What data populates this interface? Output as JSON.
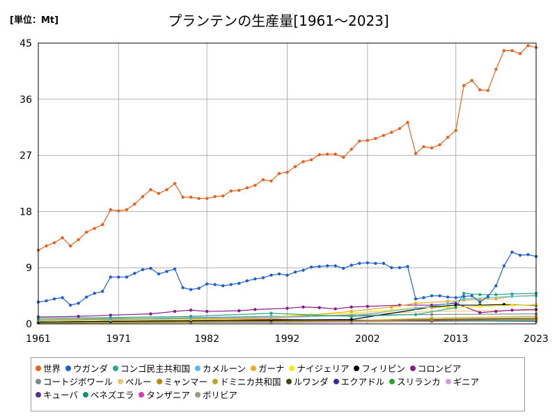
{
  "unit_label": "[単位：Mt]",
  "chart_data": {
    "type": "line",
    "title": "プランテンの生産量[1961～2023]",
    "xlabel": "",
    "ylabel": "",
    "xlim": [
      1961,
      2023
    ],
    "ylim": [
      0,
      45
    ],
    "yticks": [
      0,
      9,
      18,
      27,
      36,
      45
    ],
    "xticks": [
      1961,
      1971,
      1982,
      1992,
      2002,
      2013,
      2023
    ],
    "grid": true,
    "legend_position": "bottom",
    "series": [
      {
        "name": "世界",
        "color": "#e8601c",
        "points": [
          [
            1961,
            11.8
          ],
          [
            1962,
            12.5
          ],
          [
            1963,
            13.0
          ],
          [
            1964,
            13.8
          ],
          [
            1965,
            12.5
          ],
          [
            1966,
            13.5
          ],
          [
            1967,
            14.7
          ],
          [
            1968,
            15.3
          ],
          [
            1969,
            15.9
          ],
          [
            1970,
            18.3
          ],
          [
            1971,
            18.1
          ],
          [
            1972,
            18.3
          ],
          [
            1973,
            19.2
          ],
          [
            1974,
            20.4
          ],
          [
            1975,
            21.5
          ],
          [
            1976,
            20.9
          ],
          [
            1977,
            21.5
          ],
          [
            1978,
            22.5
          ],
          [
            1979,
            20.3
          ],
          [
            1980,
            20.3
          ],
          [
            1981,
            20.1
          ],
          [
            1982,
            20.1
          ],
          [
            1983,
            20.4
          ],
          [
            1984,
            20.5
          ],
          [
            1985,
            21.3
          ],
          [
            1986,
            21.4
          ],
          [
            1987,
            21.8
          ],
          [
            1988,
            22.2
          ],
          [
            1989,
            23.1
          ],
          [
            1990,
            22.9
          ],
          [
            1991,
            24.1
          ],
          [
            1992,
            24.3
          ],
          [
            1993,
            25.2
          ],
          [
            1994,
            26.0
          ],
          [
            1995,
            26.3
          ],
          [
            1996,
            27.1
          ],
          [
            1997,
            27.2
          ],
          [
            1998,
            27.2
          ],
          [
            1999,
            26.7
          ],
          [
            2000,
            28.0
          ],
          [
            2001,
            29.3
          ],
          [
            2002,
            29.4
          ],
          [
            2003,
            29.7
          ],
          [
            2004,
            30.2
          ],
          [
            2005,
            30.7
          ],
          [
            2006,
            31.3
          ],
          [
            2007,
            32.3
          ],
          [
            2008,
            27.3
          ],
          [
            2009,
            28.4
          ],
          [
            2010,
            28.2
          ],
          [
            2011,
            28.7
          ],
          [
            2012,
            29.9
          ],
          [
            2013,
            31.0
          ],
          [
            2014,
            38.2
          ],
          [
            2015,
            39.0
          ],
          [
            2016,
            37.5
          ],
          [
            2017,
            37.4
          ],
          [
            2018,
            40.8
          ],
          [
            2019,
            43.8
          ],
          [
            2020,
            43.8
          ],
          [
            2021,
            43.3
          ],
          [
            2022,
            44.6
          ],
          [
            2023,
            44.3
          ]
        ]
      },
      {
        "name": "ウガンダ",
        "color": "#1f5fd1",
        "points": [
          [
            1961,
            3.5
          ],
          [
            1962,
            3.7
          ],
          [
            1963,
            4.0
          ],
          [
            1964,
            4.2
          ],
          [
            1965,
            3.0
          ],
          [
            1966,
            3.3
          ],
          [
            1967,
            4.3
          ],
          [
            1968,
            4.9
          ],
          [
            1969,
            5.2
          ],
          [
            1970,
            7.5
          ],
          [
            1971,
            7.5
          ],
          [
            1972,
            7.5
          ],
          [
            1973,
            8.1
          ],
          [
            1974,
            8.7
          ],
          [
            1975,
            8.9
          ],
          [
            1976,
            8.0
          ],
          [
            1977,
            8.4
          ],
          [
            1978,
            8.8
          ],
          [
            1979,
            5.8
          ],
          [
            1980,
            5.5
          ],
          [
            1981,
            5.7
          ],
          [
            1982,
            6.4
          ],
          [
            1983,
            6.3
          ],
          [
            1984,
            6.1
          ],
          [
            1985,
            6.3
          ],
          [
            1986,
            6.5
          ],
          [
            1987,
            6.9
          ],
          [
            1988,
            7.2
          ],
          [
            1989,
            7.4
          ],
          [
            1990,
            7.8
          ],
          [
            1991,
            8.0
          ],
          [
            1992,
            7.8
          ],
          [
            1993,
            8.3
          ],
          [
            1994,
            8.6
          ],
          [
            1995,
            9.1
          ],
          [
            1996,
            9.2
          ],
          [
            1997,
            9.3
          ],
          [
            1998,
            9.3
          ],
          [
            1999,
            8.9
          ],
          [
            2000,
            9.4
          ],
          [
            2001,
            9.7
          ],
          [
            2002,
            9.8
          ],
          [
            2003,
            9.7
          ],
          [
            2004,
            9.7
          ],
          [
            2005,
            9.0
          ],
          [
            2006,
            9.0
          ],
          [
            2007,
            9.2
          ],
          [
            2008,
            4.0
          ],
          [
            2009,
            4.2
          ],
          [
            2010,
            4.5
          ],
          [
            2011,
            4.5
          ],
          [
            2012,
            4.3
          ],
          [
            2013,
            4.2
          ],
          [
            2014,
            4.4
          ],
          [
            2015,
            4.5
          ],
          [
            2016,
            3.5
          ],
          [
            2017,
            4.4
          ],
          [
            2018,
            6.1
          ],
          [
            2019,
            9.3
          ],
          [
            2020,
            11.5
          ],
          [
            2021,
            11.0
          ],
          [
            2022,
            11.1
          ],
          [
            2023,
            10.8
          ]
        ]
      },
      {
        "name": "コンゴ民主共和国",
        "color": "#2aa68a",
        "points": [
          [
            1961,
            0.9
          ],
          [
            1970,
            1.0
          ],
          [
            1980,
            1.2
          ],
          [
            1990,
            1.7
          ],
          [
            2000,
            1.2
          ],
          [
            2008,
            1.5
          ],
          [
            2013,
            2.6
          ],
          [
            2014,
            4.9
          ],
          [
            2016,
            4.7
          ],
          [
            2018,
            4.7
          ],
          [
            2020,
            4.8
          ],
          [
            2023,
            4.9
          ]
        ]
      },
      {
        "name": "カメルーン",
        "color": "#5bb8e8",
        "points": [
          [
            1961,
            0.6
          ],
          [
            1970,
            0.7
          ],
          [
            1980,
            0.9
          ],
          [
            1990,
            1.1
          ],
          [
            2000,
            1.3
          ],
          [
            2008,
            2.5
          ],
          [
            2012,
            3.2
          ],
          [
            2014,
            4.0
          ],
          [
            2017,
            4.2
          ],
          [
            2020,
            4.4
          ],
          [
            2023,
            4.5
          ]
        ]
      },
      {
        "name": "ガーナ",
        "color": "#f0a91e",
        "points": [
          [
            1961,
            0.7
          ],
          [
            1970,
            0.9
          ],
          [
            1980,
            0.8
          ],
          [
            1990,
            0.9
          ],
          [
            2000,
            2.0
          ],
          [
            2005,
            2.7
          ],
          [
            2008,
            3.3
          ],
          [
            2012,
            3.6
          ],
          [
            2014,
            3.8
          ],
          [
            2016,
            3.9
          ],
          [
            2018,
            4.0
          ],
          [
            2020,
            4.4
          ],
          [
            2023,
            4.6
          ]
        ]
      },
      {
        "name": "ナイジェリア",
        "color": "#f6e614",
        "points": [
          [
            1961,
            0.5
          ],
          [
            1970,
            0.6
          ],
          [
            1980,
            0.7
          ],
          [
            1990,
            1.1
          ],
          [
            1995,
            1.5
          ],
          [
            2000,
            1.7
          ],
          [
            2005,
            2.2
          ],
          [
            2008,
            2.6
          ],
          [
            2012,
            2.6
          ],
          [
            2016,
            2.8
          ],
          [
            2020,
            3.0
          ],
          [
            2023,
            3.1
          ]
        ]
      },
      {
        "name": "フィリピン",
        "color": "#000000",
        "points": [
          [
            1961,
            0.3
          ],
          [
            1970,
            0.4
          ],
          [
            1980,
            0.5
          ],
          [
            1990,
            0.6
          ],
          [
            2000,
            0.7
          ],
          [
            2010,
            2.7
          ],
          [
            2013,
            3.0
          ],
          [
            2016,
            3.0
          ],
          [
            2019,
            3.1
          ],
          [
            2023,
            3.0
          ]
        ]
      },
      {
        "name": "コロンビア",
        "color": "#8b1a8b",
        "points": [
          [
            1961,
            1.1
          ],
          [
            1966,
            1.2
          ],
          [
            1970,
            1.4
          ],
          [
            1975,
            1.6
          ],
          [
            1978,
            2.0
          ],
          [
            1980,
            2.2
          ],
          [
            1982,
            2.0
          ],
          [
            1986,
            2.1
          ],
          [
            1988,
            2.3
          ],
          [
            1992,
            2.5
          ],
          [
            1994,
            2.7
          ],
          [
            1996,
            2.6
          ],
          [
            1998,
            2.4
          ],
          [
            2000,
            2.7
          ],
          [
            2002,
            2.8
          ],
          [
            2006,
            3.0
          ],
          [
            2010,
            3.0
          ],
          [
            2013,
            3.3
          ],
          [
            2016,
            1.8
          ],
          [
            2018,
            2.0
          ],
          [
            2020,
            2.2
          ],
          [
            2023,
            2.3
          ]
        ]
      },
      {
        "name": "コートジボワール",
        "color": "#7a8a8a",
        "points": [
          [
            1961,
            0.6
          ],
          [
            1980,
            1.0
          ],
          [
            1990,
            1.2
          ],
          [
            2000,
            1.4
          ],
          [
            2010,
            1.5
          ],
          [
            2023,
            1.6
          ]
        ]
      },
      {
        "name": "ペルー",
        "color": "#f2c37a",
        "points": [
          [
            1961,
            0.5
          ],
          [
            1980,
            0.7
          ],
          [
            1990,
            0.8
          ],
          [
            2000,
            1.5
          ],
          [
            2010,
            2.0
          ],
          [
            2023,
            2.2
          ]
        ]
      },
      {
        "name": "ミャンマー",
        "color": "#b8860b",
        "points": [
          [
            1961,
            0.3
          ],
          [
            1980,
            0.4
          ],
          [
            1990,
            0.4
          ],
          [
            2000,
            0.5
          ],
          [
            2010,
            0.6
          ],
          [
            2023,
            0.7
          ]
        ]
      },
      {
        "name": "ドミニカ共和国",
        "color": "#c7a12a",
        "points": [
          [
            1961,
            0.2
          ],
          [
            1980,
            0.3
          ],
          [
            1990,
            0.4
          ],
          [
            2000,
            0.5
          ],
          [
            2010,
            0.9
          ],
          [
            2023,
            1.2
          ]
        ]
      },
      {
        "name": "ルワンダ",
        "color": "#3d4a14",
        "points": [
          [
            1961,
            0.2
          ],
          [
            1980,
            0.3
          ],
          [
            1990,
            0.4
          ],
          [
            2000,
            0.5
          ],
          [
            2010,
            0.7
          ],
          [
            2023,
            0.9
          ]
        ]
      },
      {
        "name": "エクアドル",
        "color": "#3b2a99",
        "points": [
          [
            1961,
            0.5
          ],
          [
            1970,
            0.6
          ],
          [
            1980,
            0.8
          ],
          [
            1990,
            0.7
          ],
          [
            2000,
            0.6
          ],
          [
            2010,
            0.5
          ],
          [
            2023,
            0.7
          ]
        ]
      },
      {
        "name": "スリランカ",
        "color": "#2ca02c",
        "points": [
          [
            1961,
            0.3
          ],
          [
            1970,
            0.4
          ],
          [
            1980,
            0.5
          ],
          [
            1990,
            0.6
          ],
          [
            2000,
            0.6
          ],
          [
            2010,
            0.6
          ],
          [
            2023,
            0.7
          ]
        ]
      },
      {
        "name": "ギニア",
        "color": "#c8a0e0",
        "points": [
          [
            1961,
            0.2
          ],
          [
            1980,
            0.3
          ],
          [
            1990,
            0.3
          ],
          [
            2000,
            0.4
          ],
          [
            2010,
            0.5
          ],
          [
            2023,
            0.6
          ]
        ]
      },
      {
        "name": "キューバ",
        "color": "#5a2d91",
        "points": [
          [
            1961,
            0.3
          ],
          [
            1980,
            0.4
          ],
          [
            1990,
            0.4
          ],
          [
            2000,
            0.5
          ],
          [
            2010,
            0.6
          ],
          [
            2023,
            0.6
          ]
        ]
      },
      {
        "name": "ベネズエラ",
        "color": "#1f8a70",
        "points": [
          [
            1961,
            0.3
          ],
          [
            1980,
            0.5
          ],
          [
            1990,
            0.5
          ],
          [
            2000,
            0.4
          ],
          [
            2010,
            0.5
          ],
          [
            2023,
            0.4
          ]
        ]
      },
      {
        "name": "タンザニア",
        "color": "#d63ab5",
        "points": [
          [
            1961,
            0.2
          ],
          [
            1980,
            0.3
          ],
          [
            1990,
            0.3
          ],
          [
            2000,
            0.4
          ],
          [
            2010,
            0.5
          ],
          [
            2023,
            0.6
          ]
        ]
      },
      {
        "name": "ボリビア",
        "color": "#9a9a80",
        "points": [
          [
            1961,
            0.1
          ],
          [
            1980,
            0.2
          ],
          [
            1990,
            0.2
          ],
          [
            2000,
            0.3
          ],
          [
            2010,
            0.4
          ],
          [
            2023,
            0.5
          ]
        ]
      }
    ]
  }
}
